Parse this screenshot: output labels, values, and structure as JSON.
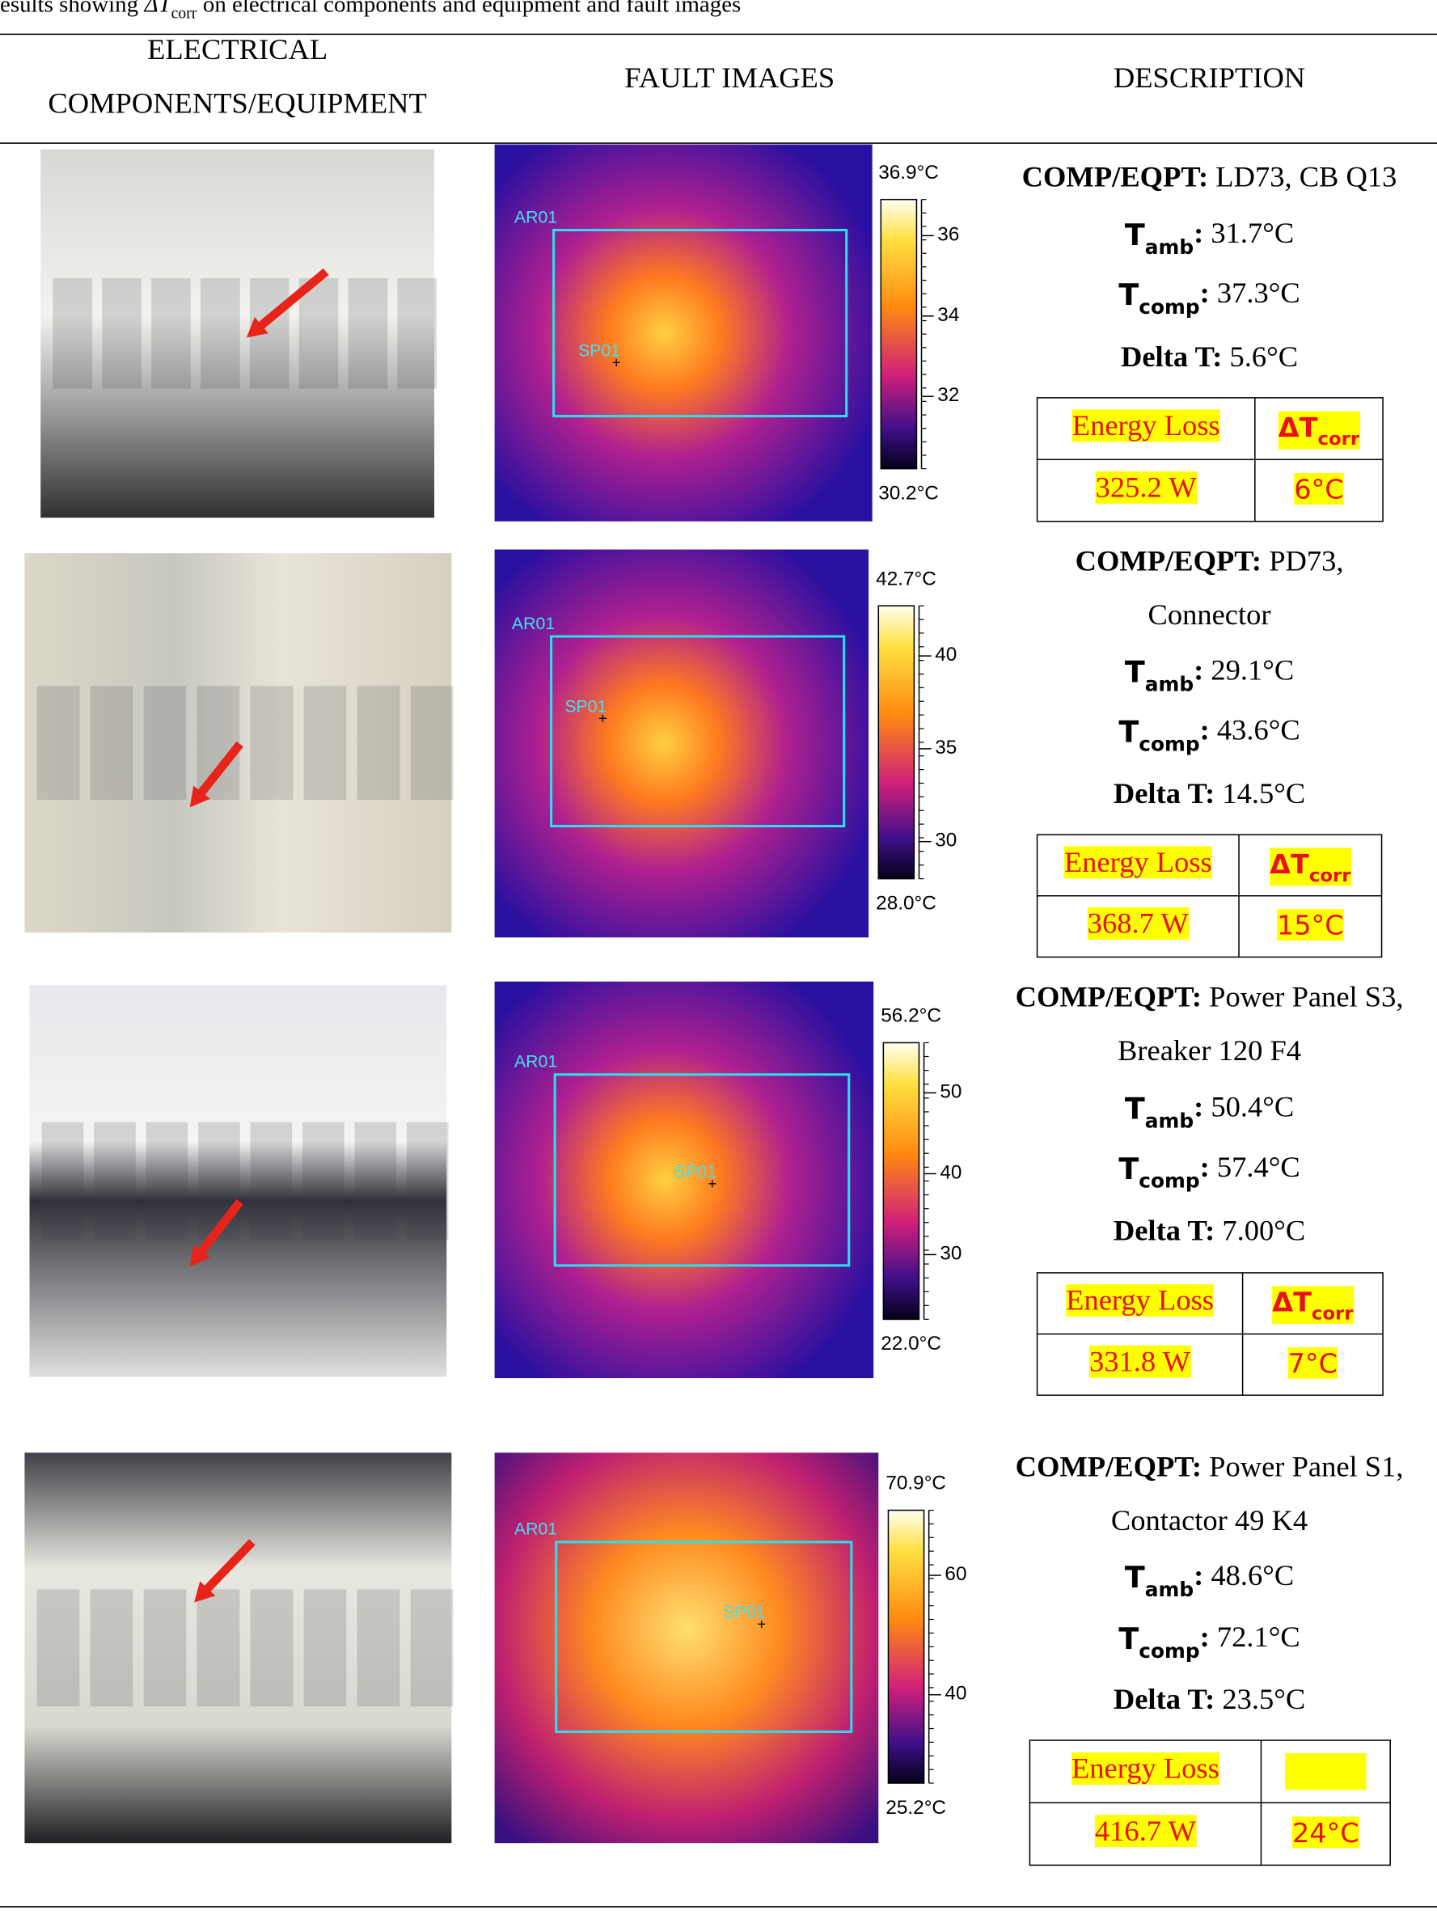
{
  "caption": {
    "text1": "esults showing",
    "symbol": "ΔT",
    "sub": "corr",
    "text2": "on electrical components and equipment and fault images"
  },
  "headers": {
    "components": [
      "ELECTRICAL",
      "COMPONENTS/EQUIPMENT"
    ],
    "fault_images": "FAULT IMAGES",
    "description": "DESCRIPTION"
  },
  "labels": {
    "comp_eqpt": "COMP/EQPT:",
    "t": "T",
    "amb": "amb",
    "comp": "comp",
    "colon": ":",
    "delta_t": "Delta T:"
  },
  "rows": [
    {
      "thermal": {
        "max": "36.9°C",
        "min": "30.2°C",
        "ticks": [
          36,
          34,
          32
        ],
        "area": "AR01",
        "spot": "SP01"
      },
      "description": {
        "comp": [
          "LD73, CB Q13"
        ],
        "tamb": "31.7°C",
        "tcomp": "37.3°C",
        "delta_t": "5.6°C",
        "table_headers": [
          "Energy Loss",
          {
            "text": "ΔT",
            "sub": "corr"
          }
        ],
        "energy_loss": "325.2 W",
        "dt_corr": "6°C"
      }
    },
    {
      "thermal": {
        "max": "42.7°C",
        "min": "28.0°C",
        "ticks": [
          40,
          35,
          30
        ],
        "area": "AR01",
        "spot": "SP01"
      },
      "description": {
        "comp": [
          "PD73,",
          "Connector"
        ],
        "tamb": "29.1°C",
        "tcomp": "43.6°C",
        "delta_t": "14.5°C",
        "table_headers": [
          "Energy Loss",
          {
            "text": "ΔT",
            "sub": "corr"
          }
        ],
        "energy_loss": "368.7 W",
        "dt_corr": "15°C"
      }
    },
    {
      "thermal": {
        "max": "56.2°C",
        "min": "22.0°C",
        "ticks": [
          50,
          40,
          30
        ],
        "area": "AR01",
        "spot": "SP01"
      },
      "description": {
        "comp": [
          "Power Panel S3,",
          "Breaker 120 F4"
        ],
        "tamb": "50.4°C",
        "tcomp": "57.4°C",
        "delta_t": "7.00°C",
        "table_headers": [
          "Energy Loss",
          {
            "text": "ΔT",
            "sub": "corr"
          }
        ],
        "energy_loss": "331.8 W",
        "dt_corr": "7°C"
      }
    },
    {
      "thermal": {
        "max": "70.9°C",
        "min": "25.2°C",
        "ticks": [
          60,
          40
        ],
        "area": "AR01",
        "spot": "SP01"
      },
      "description": {
        "comp": [
          "Power Panel S1,",
          "Contactor 49 K4"
        ],
        "tamb": "48.6°C",
        "tcomp": "72.1°C",
        "delta_t": "23.5°C",
        "table_headers": [
          "Energy Loss"
        ],
        "energy_loss": "416.7 W",
        "dt_corr": "24°C"
      }
    }
  ]
}
